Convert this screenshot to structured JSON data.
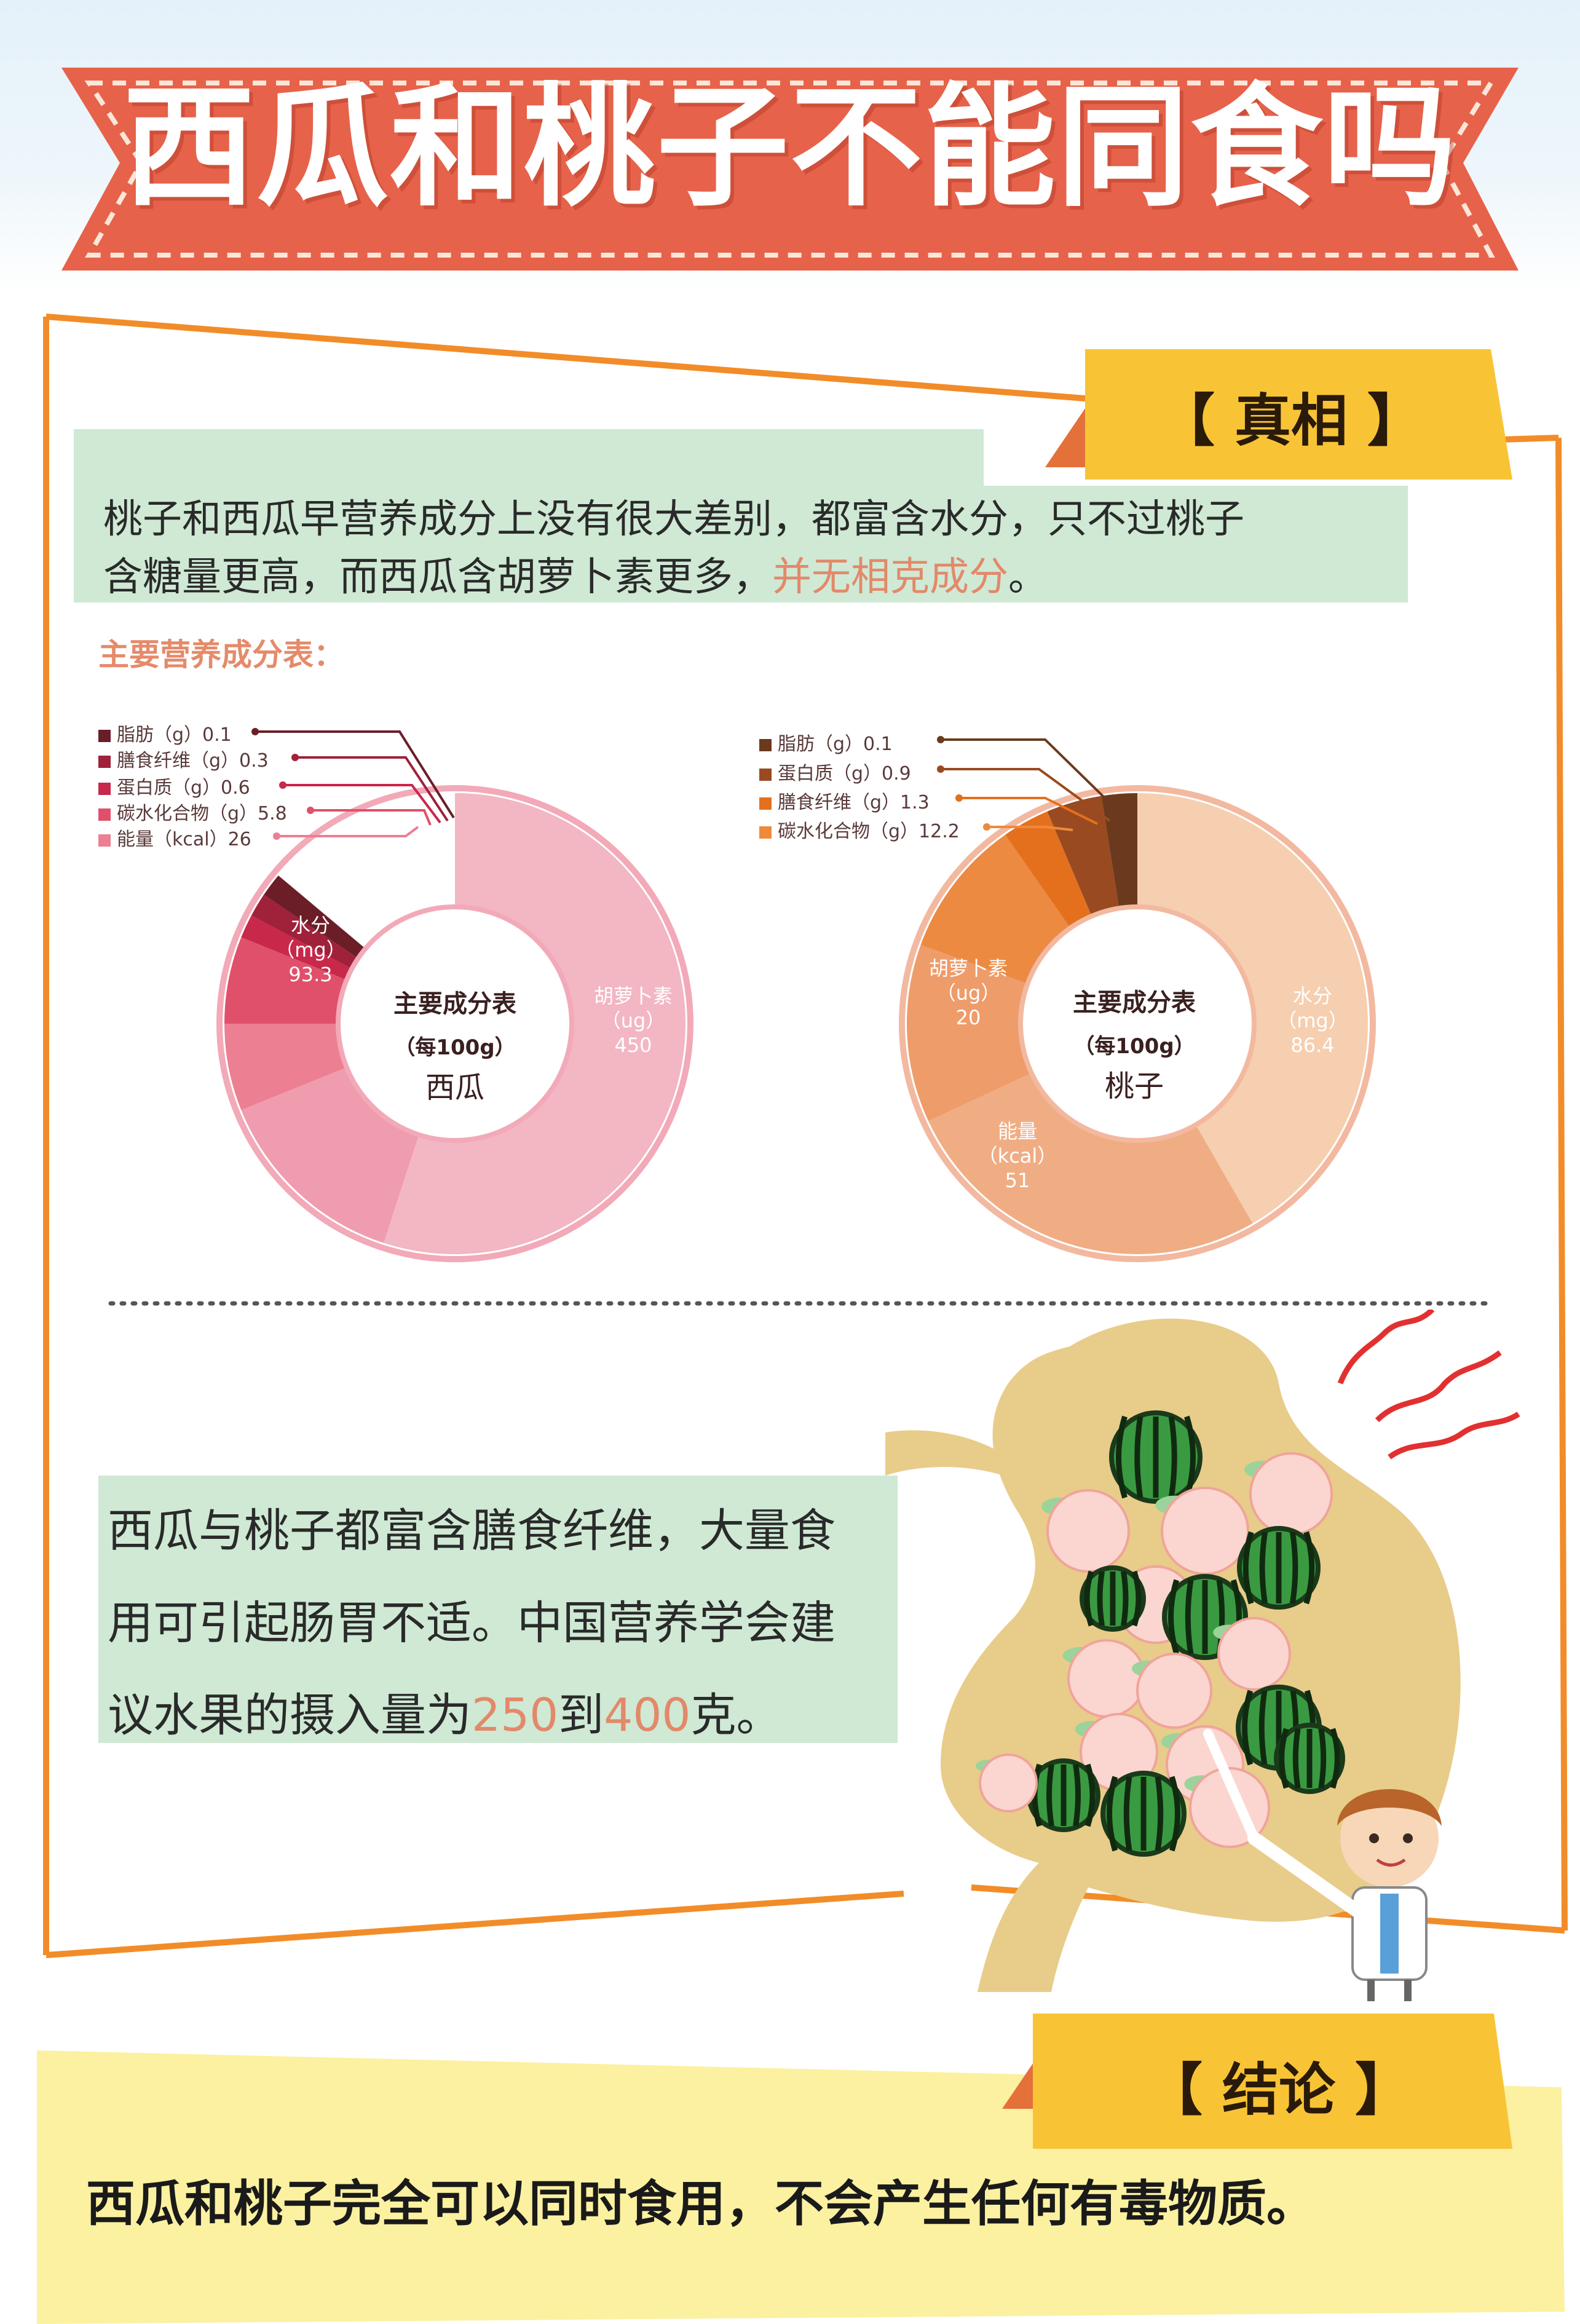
{
  "title": "西瓜和桃子不能同食吗",
  "truth": {
    "tab_label": "【 真相 】",
    "line1": "桃子和西瓜早营养成分上没有很大差别，都富含水分，只不过桃子",
    "line2_a": "含糖量更高，而西瓜含胡萝卜素更多，",
    "line2_highlight": "并无相克成分",
    "line2_end": "。",
    "table_title": "主要营养成分表："
  },
  "chart_data": [
    {
      "type": "pie",
      "center_title": "主要成分表",
      "center_sub": "（每100g）",
      "center_name": "西瓜",
      "legend": [
        {
          "label": "脂肪（g）0.1",
          "color": "#6b1e28"
        },
        {
          "label": "膳食纤维（g）0.3",
          "color": "#a0213a"
        },
        {
          "label": "蛋白质（g）0.6",
          "color": "#c8284a"
        },
        {
          "label": "碳水化合物（g）5.8",
          "color": "#e0506a"
        },
        {
          "label": "能量（kcal）26",
          "color": "#ec7f92"
        }
      ],
      "segments": [
        {
          "name": "胡萝卜素",
          "unit": "（ug）",
          "value": 450,
          "color": "#f3b6c3"
        },
        {
          "name": "水分",
          "unit": "（mg）",
          "value": 93.3,
          "color": "#ef9caf"
        },
        {
          "name": "能量",
          "value": 26,
          "color": "#ec7f92"
        },
        {
          "name": "碳水化合物",
          "value": 5.8,
          "color": "#e0506a"
        },
        {
          "name": "蛋白质",
          "value": 0.6,
          "color": "#c8284a"
        },
        {
          "name": "膳食纤维",
          "value": 0.3,
          "color": "#a0213a"
        },
        {
          "name": "脂肪",
          "value": 0.1,
          "color": "#6b1e28"
        }
      ]
    },
    {
      "type": "pie",
      "center_title": "主要成分表",
      "center_sub": "（每100g）",
      "center_name": "桃子",
      "legend": [
        {
          "label": "脂肪（g）0.1",
          "color": "#6b3a1e"
        },
        {
          "label": "蛋白质（g）0.9",
          "color": "#9a4a20"
        },
        {
          "label": "膳食纤维（g）1.3",
          "color": "#e4701e"
        },
        {
          "label": "碳水化合物（g）12.2",
          "color": "#ee8a3a"
        }
      ],
      "segments": [
        {
          "name": "水分",
          "unit": "（mg）",
          "value": 86.4,
          "color": "#f5cfb0"
        },
        {
          "name": "能量",
          "unit": "（kcal）",
          "value": 51,
          "color": "#f0ad84"
        },
        {
          "name": "胡萝卜素",
          "unit": "（ug）",
          "value": 20,
          "color": "#ee9c6a"
        },
        {
          "name": "碳水化合物",
          "value": 12.2,
          "color": "#ec8a42"
        },
        {
          "name": "膳食纤维",
          "value": 1.3,
          "color": "#e4701e"
        },
        {
          "name": "蛋白质",
          "value": 0.9,
          "color": "#9a4a20"
        },
        {
          "name": "脂肪",
          "value": 0.1,
          "color": "#6b3a1e"
        }
      ]
    }
  ],
  "advice": {
    "line1": "西瓜与桃子都富含膳食纤维，大量食",
    "line2": "用可引起肠胃不适。中国营养学会建",
    "line3_a": "议水果的摄入量为",
    "num1": "250",
    "mid": "到",
    "num2": "400",
    "end": "克。"
  },
  "conclusion": {
    "tab_label": "【 结论 】",
    "text": "西瓜和桃子完全可以同时食用，不会产生任何有毒物质。"
  },
  "colors": {
    "banner": "#ec6a4e",
    "accent_orange": "#f28c28",
    "tab_yellow": "#f8c436",
    "green_box": "#cfe9d4",
    "conclusion_yellow": "#fbf1a0"
  }
}
